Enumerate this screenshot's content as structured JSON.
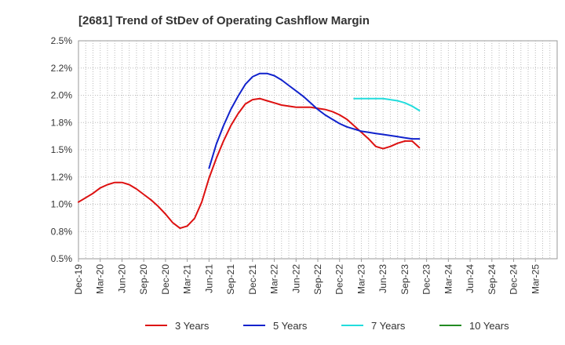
{
  "chart_data": {
    "type": "line",
    "title": "[2681]  Trend of StDev of Operating Cashflow Margin",
    "xlabel": "",
    "ylabel": "",
    "ylim": [
      0.5,
      2.5
    ],
    "y_ticks": [
      "0.5%",
      "0.8%",
      "1.0%",
      "1.2%",
      "1.5%",
      "1.8%",
      "2.0%",
      "2.2%",
      "2.5%"
    ],
    "x_ticks": [
      "Dec-19",
      "Mar-20",
      "Jun-20",
      "Sep-20",
      "Dec-20",
      "Mar-21",
      "Jun-21",
      "Sep-21",
      "Dec-21",
      "Mar-22",
      "Jun-22",
      "Sep-22",
      "Dec-22",
      "Mar-23",
      "Jun-23",
      "Sep-23",
      "Dec-23",
      "Mar-24",
      "Jun-24",
      "Sep-24",
      "Dec-24",
      "Mar-25"
    ],
    "grid": true,
    "legend_position": "bottom",
    "series": [
      {
        "name": "3 Years",
        "color": "#dd1111",
        "x": [
          0,
          1,
          2,
          3,
          4,
          5,
          6,
          7,
          8,
          9,
          10,
          11,
          12,
          13,
          14,
          15,
          16,
          17,
          18,
          19,
          20,
          21,
          22,
          23,
          24,
          25,
          26,
          27,
          28,
          29,
          30,
          31,
          32,
          33,
          34,
          35,
          36,
          37,
          38,
          39,
          40,
          41,
          42,
          43,
          44,
          45,
          46,
          47,
          48,
          49,
          50,
          51,
          52,
          53,
          54,
          55,
          56,
          57
        ],
        "values": [
          1.02,
          1.06,
          1.1,
          1.15,
          1.18,
          1.2,
          1.2,
          1.18,
          1.14,
          1.09,
          1.04,
          0.98,
          0.91,
          0.83,
          0.78,
          0.8,
          0.87,
          1.02,
          1.24,
          1.42,
          1.58,
          1.72,
          1.83,
          1.92,
          1.96,
          1.97,
          1.95,
          1.93,
          1.91,
          1.9,
          1.89,
          1.89,
          1.89,
          1.88,
          1.87,
          1.85,
          1.82,
          1.78,
          1.72,
          1.66,
          1.6,
          1.53,
          1.51,
          1.53,
          1.56,
          1.58,
          1.58,
          1.52,
          null,
          null,
          null,
          null,
          null,
          null,
          null,
          null,
          null,
          null
        ]
      },
      {
        "name": "5 Years",
        "color": "#1122cc",
        "x": [
          18,
          19,
          20,
          21,
          22,
          23,
          24,
          25,
          26,
          27,
          28,
          29,
          30,
          31,
          32,
          33,
          34,
          35,
          36,
          37,
          38,
          39,
          40,
          41,
          42,
          43,
          44,
          45,
          46,
          47
        ],
        "values": [
          1.33,
          1.55,
          1.72,
          1.87,
          1.99,
          2.1,
          2.17,
          2.2,
          2.2,
          2.18,
          2.14,
          2.09,
          2.04,
          1.99,
          1.93,
          1.87,
          1.82,
          1.78,
          1.74,
          1.71,
          1.69,
          1.67,
          1.66,
          1.65,
          1.64,
          1.63,
          1.62,
          1.61,
          1.6,
          1.6
        ]
      },
      {
        "name": "7 Years",
        "color": "#22dddd",
        "x": [
          38,
          39,
          40,
          41,
          42,
          43,
          44,
          45,
          46,
          47
        ],
        "values": [
          1.97,
          1.97,
          1.97,
          1.97,
          1.97,
          1.96,
          1.95,
          1.93,
          1.9,
          1.86
        ]
      },
      {
        "name": "10 Years",
        "color": "#228b22",
        "x": [],
        "values": []
      }
    ]
  }
}
